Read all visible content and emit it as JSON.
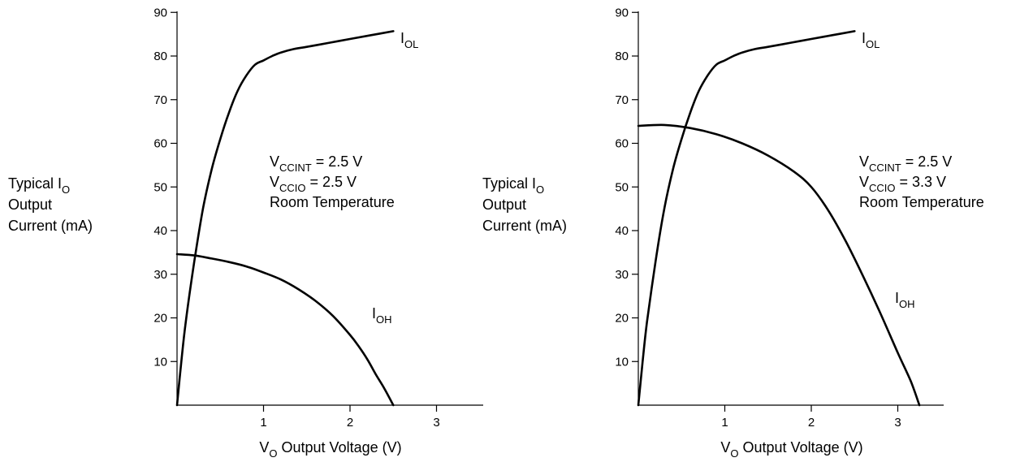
{
  "chart_data": [
    {
      "type": "line",
      "xlabel": {
        "main": "V",
        "sub": "O",
        "rest": " Output Voltage (V)"
      },
      "ylabel": {
        "line1_main": "Typical I",
        "line1_sub": "O",
        "line2": "Output",
        "line3": "Current (mA)"
      },
      "xlim": [
        0,
        3.5
      ],
      "ylim": [
        0,
        93
      ],
      "x_ticks": [
        1,
        2,
        3
      ],
      "y_ticks": [
        10,
        20,
        30,
        40,
        50,
        60,
        70,
        80,
        90
      ],
      "grid": false,
      "annotation": [
        {
          "main": "V",
          "sub": "CCINT",
          "rest": " = 2.5 V"
        },
        {
          "main": "V",
          "sub": "CCIO",
          "rest": " = 2.5 V"
        },
        {
          "main": "Room Temperature",
          "sub": "",
          "rest": ""
        }
      ],
      "series": [
        {
          "name": "I_OL",
          "label_main": "I",
          "label_sub": "OL",
          "x": [
            0,
            0.05,
            0.1,
            0.2,
            0.3,
            0.4,
            0.5,
            0.6,
            0.7,
            0.8,
            0.9,
            1.0,
            1.1,
            1.2,
            1.35,
            1.5,
            1.75,
            2.0,
            2.25,
            2.5
          ],
          "y": [
            0,
            10,
            19,
            33,
            45,
            54,
            61,
            67,
            72,
            75.5,
            78,
            79,
            80,
            80.8,
            81.6,
            82.1,
            83,
            83.9,
            84.8,
            85.7
          ]
        },
        {
          "name": "I_OH",
          "label_main": "I",
          "label_sub": "OH",
          "x": [
            0,
            0.2,
            0.4,
            0.6,
            0.8,
            1.0,
            1.2,
            1.4,
            1.6,
            1.8,
            2.0,
            2.1,
            2.2,
            2.3,
            2.4,
            2.5
          ],
          "y": [
            34.6,
            34.3,
            33.6,
            32.8,
            31.8,
            30.4,
            28.8,
            26.6,
            23.9,
            20.5,
            16.1,
            13.5,
            10.5,
            7.0,
            3.7,
            0
          ]
        }
      ]
    },
    {
      "type": "line",
      "xlabel": {
        "main": "V",
        "sub": "O",
        "rest": " Output Voltage (V)"
      },
      "ylabel": {
        "line1_main": "Typical I",
        "line1_sub": "O",
        "line2": "Output",
        "line3": "Current (mA)"
      },
      "xlim": [
        0,
        3.5
      ],
      "ylim": [
        0,
        93
      ],
      "x_ticks": [
        1,
        2,
        3
      ],
      "y_ticks": [
        10,
        20,
        30,
        40,
        50,
        60,
        70,
        80,
        90
      ],
      "grid": false,
      "annotation": [
        {
          "main": "V",
          "sub": "CCINT",
          "rest": " = 2.5 V"
        },
        {
          "main": "V",
          "sub": "CCIO",
          "rest": " = 3.3 V"
        },
        {
          "main": "Room Temperature",
          "sub": "",
          "rest": ""
        }
      ],
      "series": [
        {
          "name": "I_OL",
          "label_main": "I",
          "label_sub": "OL",
          "x": [
            0,
            0.05,
            0.1,
            0.2,
            0.3,
            0.4,
            0.5,
            0.6,
            0.7,
            0.8,
            0.9,
            1.0,
            1.1,
            1.2,
            1.35,
            1.5,
            1.75,
            2.0,
            2.25,
            2.5
          ],
          "y": [
            0,
            10,
            19,
            33,
            45,
            54,
            61,
            67,
            72,
            75.5,
            78,
            79,
            80,
            80.8,
            81.6,
            82.1,
            83,
            83.9,
            84.8,
            85.7
          ]
        },
        {
          "name": "I_OH",
          "label_main": "I",
          "label_sub": "OH",
          "x": [
            0,
            0.3,
            0.6,
            0.9,
            1.2,
            1.5,
            1.8,
            2.0,
            2.2,
            2.4,
            2.6,
            2.8,
            3.0,
            3.15,
            3.25
          ],
          "y": [
            64,
            64.2,
            63.5,
            62.1,
            60,
            57.2,
            53.5,
            50,
            44.5,
            37.5,
            29.5,
            21,
            12,
            5.5,
            0
          ]
        }
      ]
    }
  ]
}
